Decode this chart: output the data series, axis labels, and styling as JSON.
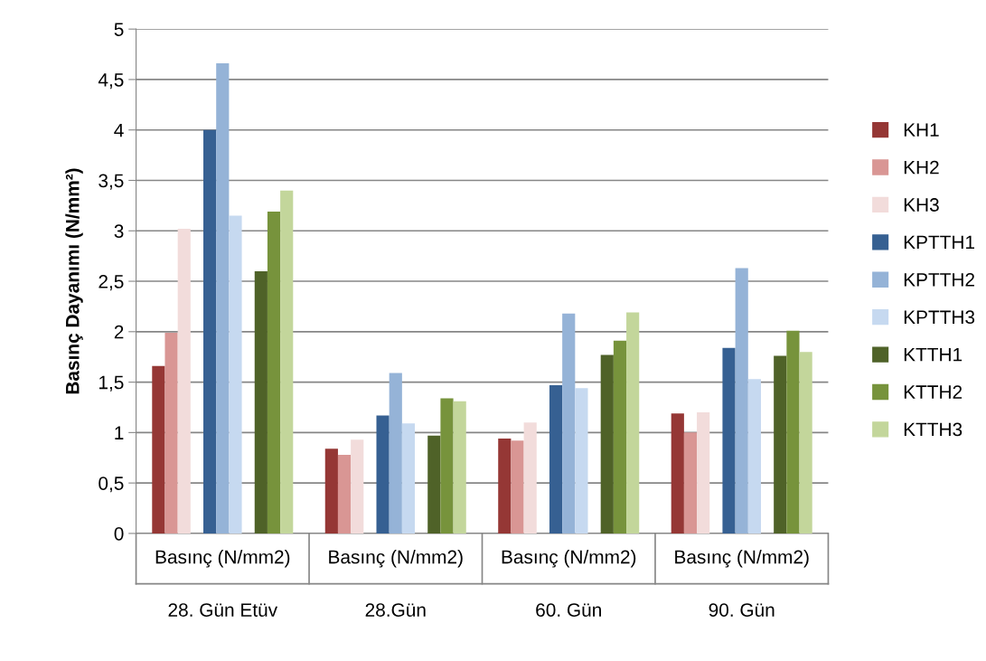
{
  "chart_data": {
    "type": "bar",
    "ylabel": "Basınç Dayanımı (N/mm²)",
    "categories": [
      "28. Gün Etüv",
      "28.Gün",
      "60. Gün",
      "90. Gün"
    ],
    "annotations": [
      "Basınç (N/mm2)",
      "Basınç (N/mm2)",
      "Basınç (N/mm2)",
      "Basınç (N/mm2)"
    ],
    "series": [
      {
        "name": "KH1",
        "color": "#953735",
        "values": [
          1.66,
          0.84,
          0.94,
          1.19
        ]
      },
      {
        "name": "KH2",
        "color": "#d99694",
        "values": [
          1.99,
          0.78,
          0.92,
          1.0
        ]
      },
      {
        "name": "KH3",
        "color": "#f2dcdb",
        "values": [
          3.02,
          0.93,
          1.1,
          1.2
        ]
      },
      {
        "name": "KPTTH1",
        "color": "#366092",
        "values": [
          4.0,
          1.17,
          1.47,
          1.84
        ]
      },
      {
        "name": "KPTTH2",
        "color": "#95b3d7",
        "values": [
          4.66,
          1.59,
          2.18,
          2.63
        ]
      },
      {
        "name": "KPTTH3",
        "color": "#c6d9f0",
        "values": [
          3.15,
          1.09,
          1.44,
          1.53
        ]
      },
      {
        "name": "KTTH1",
        "color": "#4f6228",
        "values": [
          2.6,
          0.97,
          1.77,
          1.76
        ]
      },
      {
        "name": "KTTH2",
        "color": "#77933c",
        "values": [
          3.19,
          1.34,
          1.91,
          2.01
        ]
      },
      {
        "name": "KTTH3",
        "color": "#c3d69b",
        "values": [
          3.4,
          1.31,
          2.19,
          1.8
        ]
      }
    ],
    "ylim": [
      0,
      5
    ],
    "yticks": [
      0,
      {
        "value": 0.5,
        "label": "0,5"
      },
      1,
      {
        "value": 1.5,
        "label": "1,5"
      },
      2,
      {
        "value": 2.5,
        "label": "2,5"
      },
      3,
      {
        "value": 3.5,
        "label": "3,5"
      },
      4,
      {
        "value": 4.5,
        "label": "4,5"
      },
      5
    ],
    "grid": "y",
    "legend": "right"
  }
}
